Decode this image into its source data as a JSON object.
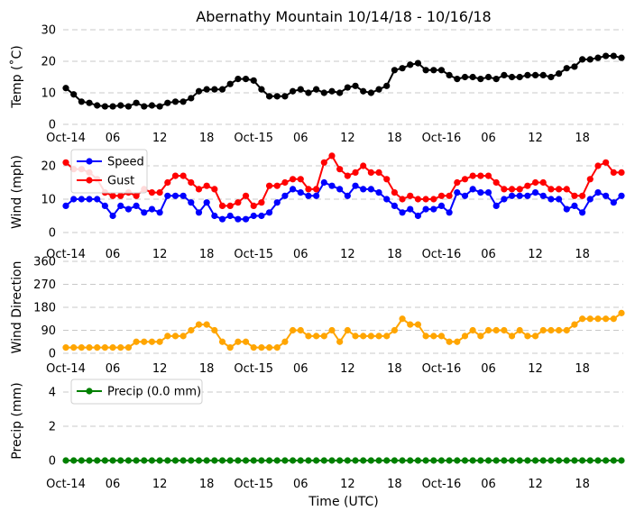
{
  "chart_data": [
    {
      "type": "line",
      "title": "Abernathy Mountain 10/14/18 - 10/16/18",
      "ylabel": "Temp (˚C)",
      "ylim": [
        0,
        30
      ],
      "yticks": [
        0,
        10,
        20,
        30
      ],
      "grid": "y dashed",
      "xticks": [
        "Oct-14",
        "06",
        "12",
        "18",
        "Oct-15",
        "06",
        "12",
        "18",
        "Oct-16",
        "06",
        "12",
        "18"
      ],
      "x_unit": "hourly from Oct-14 00:00",
      "series": [
        {
          "color": "#000000",
          "values": [
            11.5,
            9.5,
            7.2,
            6.8,
            6.0,
            5.7,
            5.7,
            6.0,
            5.7,
            6.8,
            5.7,
            6.0,
            5.7,
            6.8,
            7.2,
            7.2,
            8.3,
            10.5,
            11.1,
            11.1,
            11.1,
            12.8,
            14.4,
            14.4,
            13.9,
            11.1,
            8.9,
            8.9,
            8.9,
            10.5,
            11.1,
            10.0,
            11.1,
            10.0,
            10.5,
            10.0,
            11.7,
            12.2,
            10.5,
            10.0,
            11.1,
            12.2,
            17.2,
            17.8,
            18.9,
            19.4,
            17.2,
            17.2,
            17.2,
            15.6,
            14.4,
            15.0,
            15.0,
            14.4,
            15.0,
            14.4,
            15.6,
            15.0,
            15.0,
            15.6,
            15.6,
            15.6,
            15.0,
            16.1,
            17.8,
            18.3,
            20.6,
            20.6,
            21.1,
            21.7,
            21.7,
            21.1
          ]
        }
      ]
    },
    {
      "type": "line",
      "ylabel": "Wind (mph)",
      "ylim": [
        0,
        25
      ],
      "yticks": [
        0,
        10,
        20
      ],
      "grid": "y dashed",
      "legend": "top-left",
      "xticks": [
        "Oct-14",
        "06",
        "12",
        "18",
        "Oct-15",
        "06",
        "12",
        "18",
        "Oct-16",
        "06",
        "12",
        "18"
      ],
      "series": [
        {
          "name": "Speed",
          "color": "#0000ff",
          "values": [
            8,
            10,
            10,
            10,
            10,
            8,
            5,
            8,
            7,
            8,
            6,
            7,
            6,
            11,
            11,
            11,
            9,
            6,
            9,
            5,
            4,
            5,
            4,
            4,
            5,
            5,
            6,
            9,
            11,
            13,
            12,
            11,
            11,
            15,
            14,
            13,
            11,
            14,
            13,
            13,
            12,
            10,
            8,
            6,
            7,
            5,
            7,
            7,
            8,
            6,
            12,
            11,
            13,
            12,
            12,
            8,
            10,
            11,
            11,
            11,
            12,
            11,
            10,
            10,
            7,
            8,
            6,
            10,
            12,
            11,
            9,
            11
          ]
        },
        {
          "name": "Gust",
          "color": "#ff0000",
          "values": [
            21,
            19,
            19,
            18,
            16,
            12,
            11,
            11,
            12,
            11,
            13,
            12,
            12,
            15,
            17,
            17,
            15,
            13,
            14,
            13,
            8,
            8,
            9,
            11,
            8,
            9,
            14,
            14,
            15,
            16,
            16,
            13,
            13,
            21,
            23,
            19,
            17,
            18,
            20,
            18,
            18,
            16,
            12,
            10,
            11,
            10,
            10,
            10,
            11,
            11,
            15,
            16,
            17,
            17,
            17,
            15,
            13,
            13,
            13,
            14,
            15,
            15,
            13,
            13,
            13,
            11,
            11,
            16,
            20,
            21,
            18,
            18
          ]
        }
      ]
    },
    {
      "type": "line",
      "ylabel": "Wind Direction",
      "ylim": [
        0,
        360
      ],
      "yticks": [
        0,
        90,
        180,
        270,
        360
      ],
      "grid": "y dashed",
      "xticks": [
        "Oct-14",
        "06",
        "12",
        "18",
        "Oct-15",
        "06",
        "12",
        "18",
        "Oct-16",
        "06",
        "12",
        "18"
      ],
      "series": [
        {
          "color": "#ffa500",
          "values": [
            22.5,
            22.5,
            22.5,
            22.5,
            22.5,
            22.5,
            22.5,
            22.5,
            22.5,
            45,
            45,
            45,
            45,
            67.5,
            67.5,
            67.5,
            90,
            112.5,
            112.5,
            90,
            45,
            22.5,
            45,
            45,
            22.5,
            22.5,
            22.5,
            22.5,
            45,
            90,
            90,
            67.5,
            67.5,
            67.5,
            90,
            45,
            90,
            67.5,
            67.5,
            67.5,
            67.5,
            67.5,
            90,
            135,
            112.5,
            112.5,
            67.5,
            67.5,
            67.5,
            45,
            45,
            67.5,
            90,
            67.5,
            90,
            90,
            90,
            67.5,
            90,
            67.5,
            67.5,
            90,
            90,
            90,
            90,
            112.5,
            135,
            135,
            135,
            135,
            135,
            157.5
          ]
        }
      ]
    },
    {
      "type": "line",
      "ylabel": "Precip (mm)",
      "xlabel": "Time (UTC)",
      "ylim": [
        -0.3,
        5
      ],
      "yticks": [
        0,
        2,
        4
      ],
      "grid": "y dashed",
      "legend": "top-left",
      "xticks": [
        "Oct-14",
        "06",
        "12",
        "18",
        "Oct-15",
        "06",
        "12",
        "18",
        "Oct-16",
        "06",
        "12",
        "18"
      ],
      "series": [
        {
          "name": "Precip (0.0 mm)",
          "color": "#008000",
          "values": [
            0,
            0,
            0,
            0,
            0,
            0,
            0,
            0,
            0,
            0,
            0,
            0,
            0,
            0,
            0,
            0,
            0,
            0,
            0,
            0,
            0,
            0,
            0,
            0,
            0,
            0,
            0,
            0,
            0,
            0,
            0,
            0,
            0,
            0,
            0,
            0,
            0,
            0,
            0,
            0,
            0,
            0,
            0,
            0,
            0,
            0,
            0,
            0,
            0,
            0,
            0,
            0,
            0,
            0,
            0,
            0,
            0,
            0,
            0,
            0,
            0,
            0,
            0,
            0,
            0,
            0,
            0,
            0,
            0,
            0,
            0,
            0
          ]
        }
      ]
    }
  ]
}
